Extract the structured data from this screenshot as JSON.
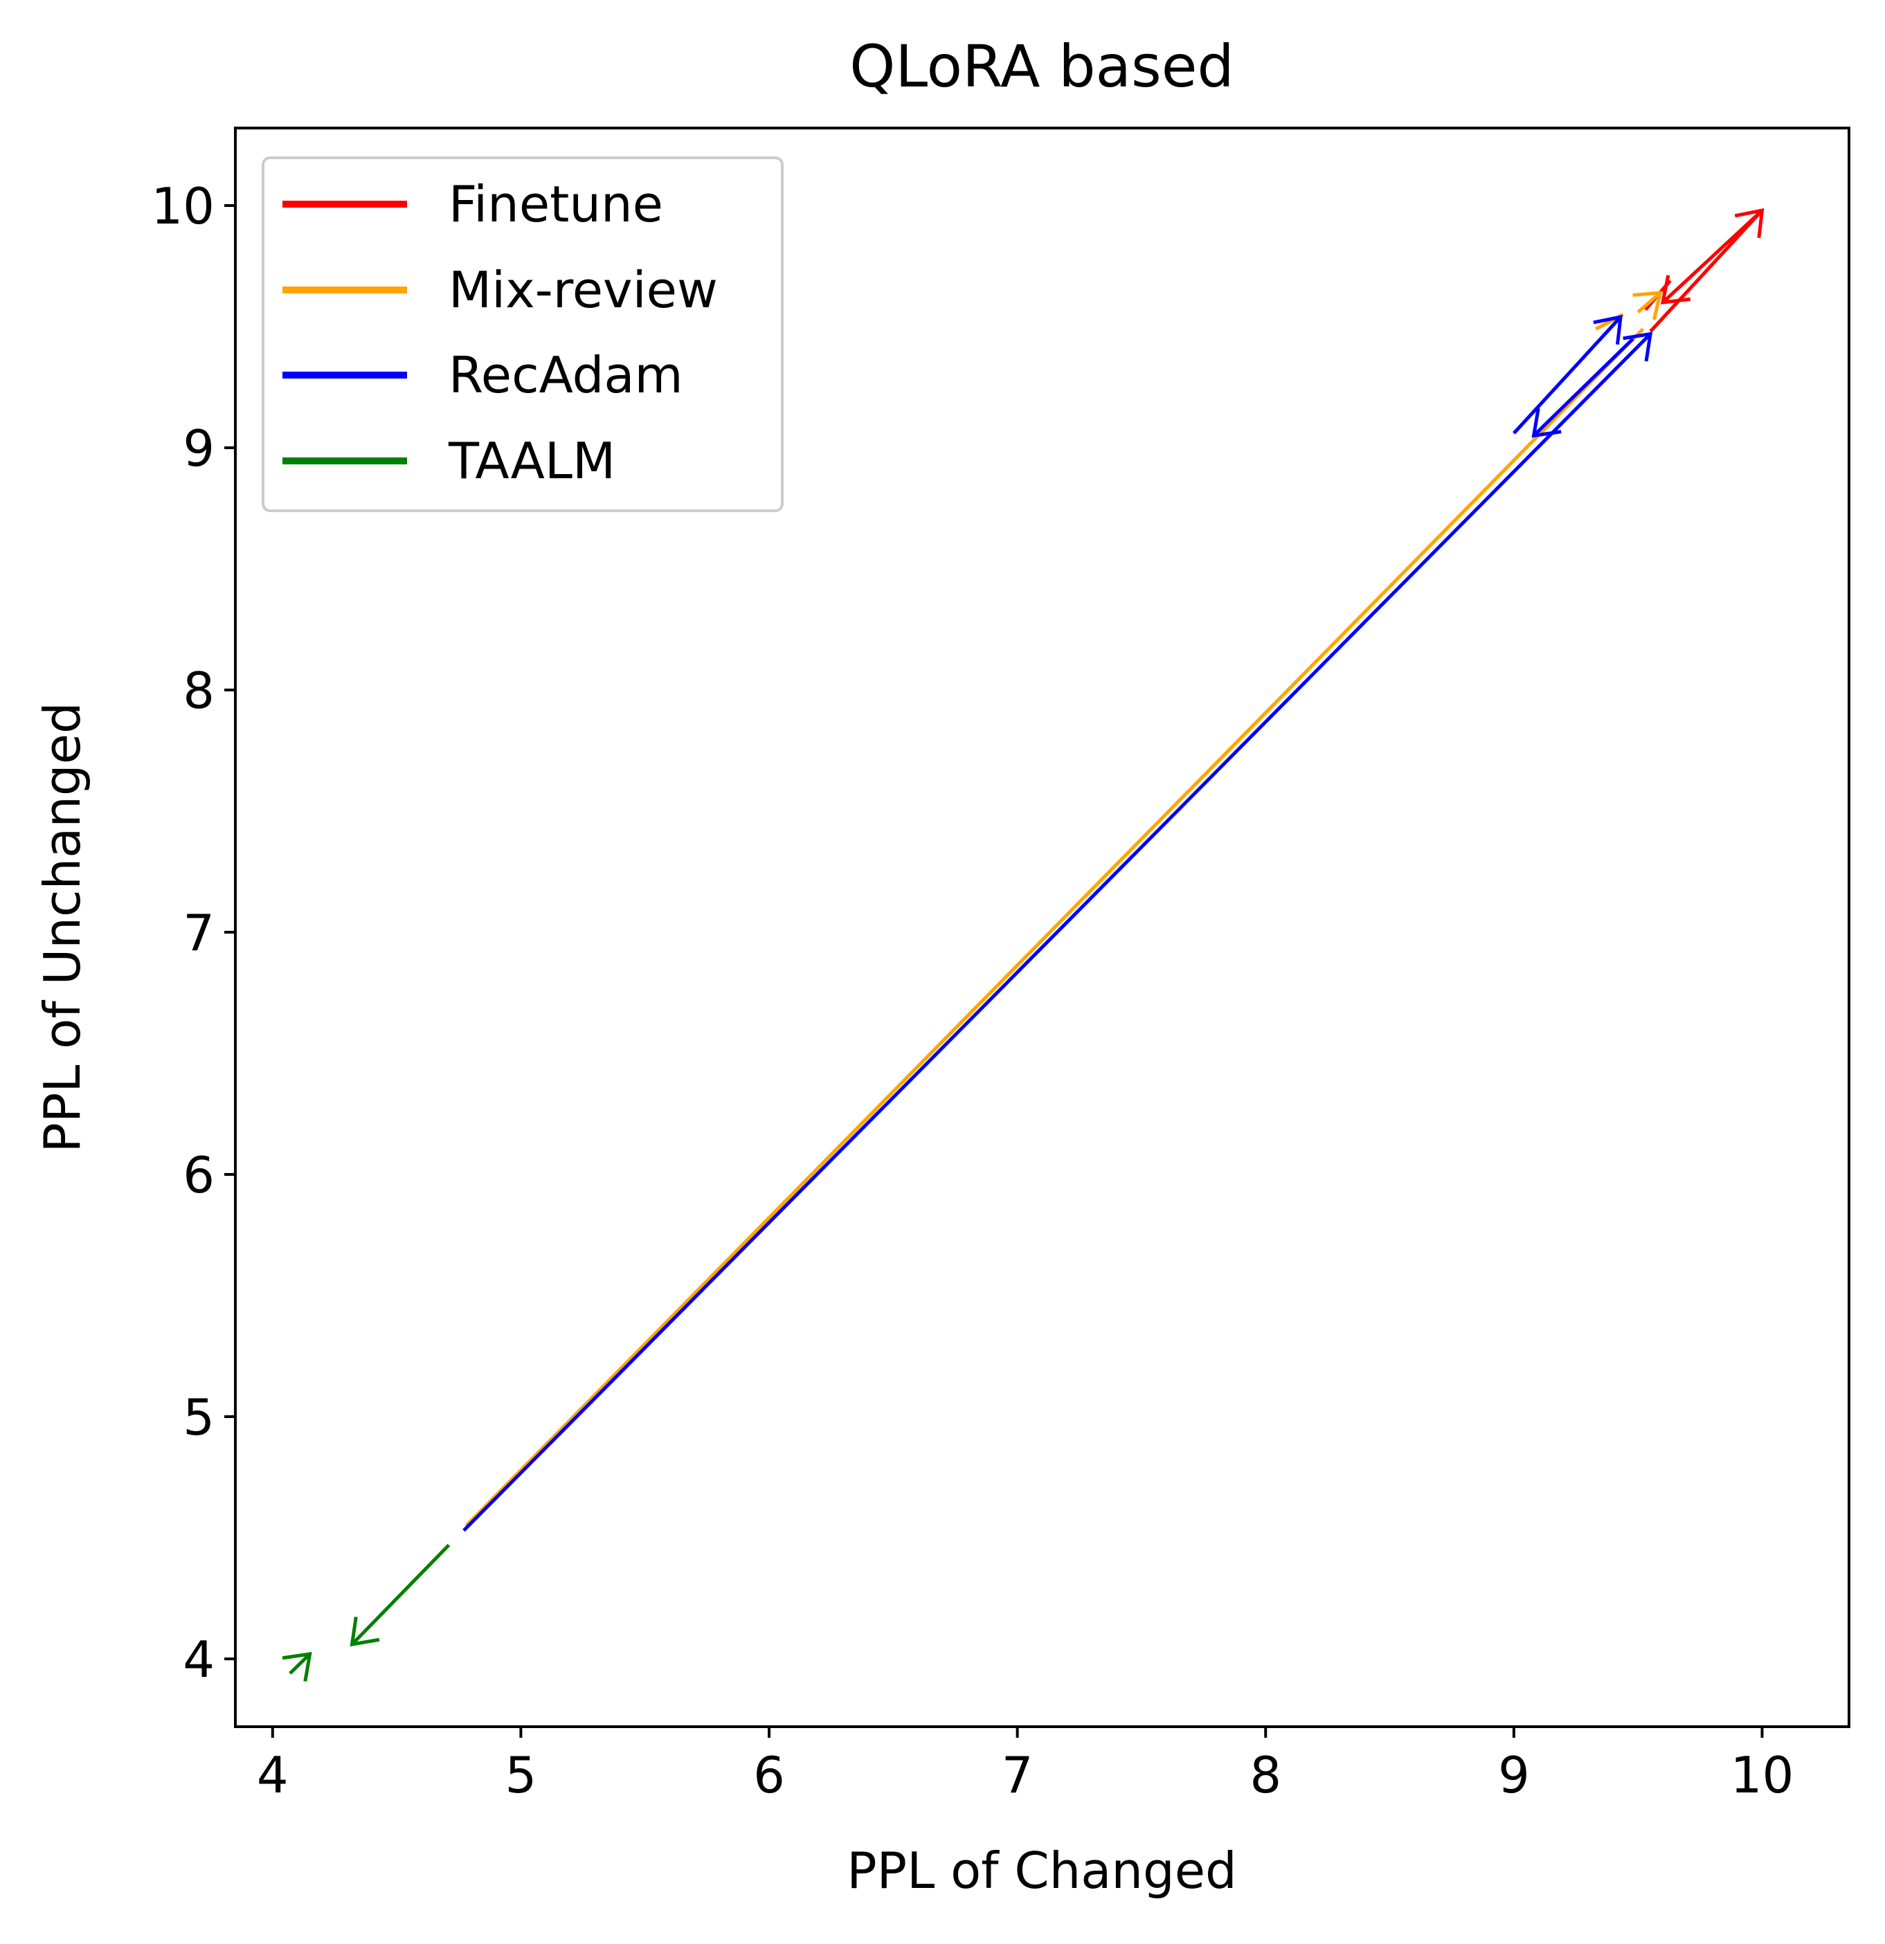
{
  "chart_data": {
    "type": "line",
    "title": "QLoRA based",
    "xlabel": "PPL of Changed",
    "ylabel": "PPL of Unchanged",
    "xlim": [
      3.85,
      10.35
    ],
    "ylim": [
      3.72,
      10.32
    ],
    "xticks": [
      4,
      5,
      6,
      7,
      8,
      9,
      10
    ],
    "yticks": [
      4,
      5,
      6,
      7,
      8,
      9,
      10
    ],
    "xtick_labels": [
      "4",
      "5",
      "6",
      "7",
      "8",
      "9",
      "10"
    ],
    "ytick_labels": [
      "4",
      "5",
      "6",
      "7",
      "8",
      "9",
      "10"
    ],
    "grid": false,
    "legend_position": "top-left",
    "series": [
      {
        "name": "Finetune",
        "color": "#ff0000",
        "segments": [
          {
            "from": [
              9.55,
              9.48
            ],
            "to": [
              10.0,
              9.98
            ],
            "arrow": true
          },
          {
            "from": [
              10.0,
              9.98
            ],
            "to": [
              9.6,
              9.6
            ],
            "arrow": true
          },
          {
            "from": [
              9.53,
              9.57
            ],
            "to": [
              9.63,
              9.69
            ],
            "arrow": false
          }
        ]
      },
      {
        "name": "Mix-review",
        "color": "#ffa500",
        "segments": [
          {
            "from": [
              4.78,
              4.55
            ],
            "to": [
              9.52,
              9.49
            ],
            "arrow": false
          },
          {
            "from": [
              9.33,
              9.49
            ],
            "to": [
              9.44,
              9.55
            ],
            "arrow": false
          },
          {
            "from": [
              9.5,
              9.56
            ],
            "to": [
              9.59,
              9.64
            ],
            "arrow": true
          }
        ]
      },
      {
        "name": "RecAdam",
        "color": "#0000ff",
        "segments": [
          {
            "from": [
              4.77,
              4.53
            ],
            "to": [
              9.55,
              9.47
            ],
            "arrow": true
          },
          {
            "from": [
              9.0,
              9.06
            ],
            "to": [
              9.43,
              9.54
            ],
            "arrow": true
          },
          {
            "from": [
              9.48,
              9.45
            ],
            "to": [
              9.08,
              9.05
            ],
            "arrow": true
          }
        ]
      },
      {
        "name": "TAALM",
        "color": "#008000",
        "segments": [
          {
            "from": [
              4.71,
              4.47
            ],
            "to": [
              4.32,
              4.06
            ],
            "arrow": true
          },
          {
            "from": [
              4.07,
              3.94
            ],
            "to": [
              4.15,
              4.02
            ],
            "arrow": true
          }
        ]
      }
    ]
  }
}
